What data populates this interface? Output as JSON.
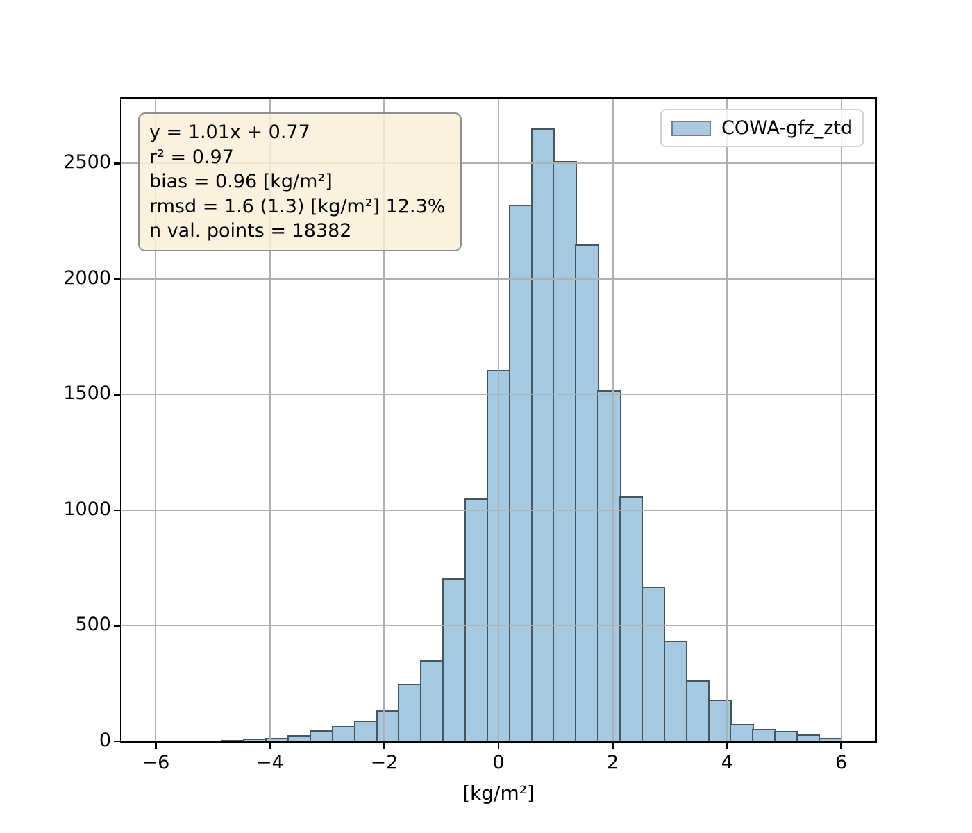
{
  "figure": {
    "background": "#ffffff"
  },
  "stats_box": {
    "lines": [
      "y = 1.01x + 0.77",
      "r² = 0.97",
      "bias = 0.96 [kg/m²]",
      "rmsd = 1.6 (1.3) [kg/m²] 12.3%",
      "n val. points = 18382"
    ]
  },
  "legend": {
    "label": "COWA-gfz_ztd",
    "position": "upper right"
  },
  "chart_data": {
    "type": "bar",
    "subtype": "histogram",
    "title": "",
    "xlabel": "[kg/m²]",
    "ylabel": "",
    "series_name": "COWA-gfz_ztd",
    "xlim": [
      -6.6,
      6.6
    ],
    "ylim": [
      0,
      2780
    ],
    "grid": true,
    "legend_position": "upper right",
    "x_ticks": [
      -6,
      -4,
      -2,
      0,
      2,
      4,
      6
    ],
    "x_tick_labels": [
      "−6",
      "−4",
      "−2",
      "0",
      "2",
      "4",
      "6"
    ],
    "y_ticks": [
      0,
      500,
      1000,
      1500,
      2000,
      2500
    ],
    "y_tick_labels": [
      "0",
      "500",
      "1000",
      "1500",
      "2000",
      "2500"
    ],
    "bins": {
      "start": -5.63,
      "width": 0.3873,
      "count": 30
    },
    "values": [
      2,
      3,
      5,
      12,
      16,
      27,
      48,
      65,
      90,
      135,
      250,
      350,
      705,
      1050,
      1605,
      2320,
      2650,
      2510,
      2150,
      1520,
      1060,
      670,
      435,
      265,
      180,
      75,
      55,
      45,
      30,
      15
    ],
    "annotations": {
      "fit_equation": "y = 1.01x + 0.77",
      "r_squared": 0.97,
      "bias": 0.96,
      "bias_units": "[kg/m²]",
      "rmsd": 1.6,
      "rmsd_debiased": 1.3,
      "rmsd_percent": "12.3%",
      "n_val_points": 18382
    },
    "colors": {
      "bar_fill": "#a6c9e2",
      "bar_edge": "#47555f",
      "grid": "#b0b0b0",
      "spine": "#000000",
      "text": "#000000",
      "stats_bg": "#f9eed8d9",
      "stats_border": "#909090",
      "legend_bg": "#ffffffcc",
      "legend_border": "#d4d4d4",
      "swatch_fill": "#a8cbe3",
      "swatch_border": "#7f7f7f"
    }
  }
}
